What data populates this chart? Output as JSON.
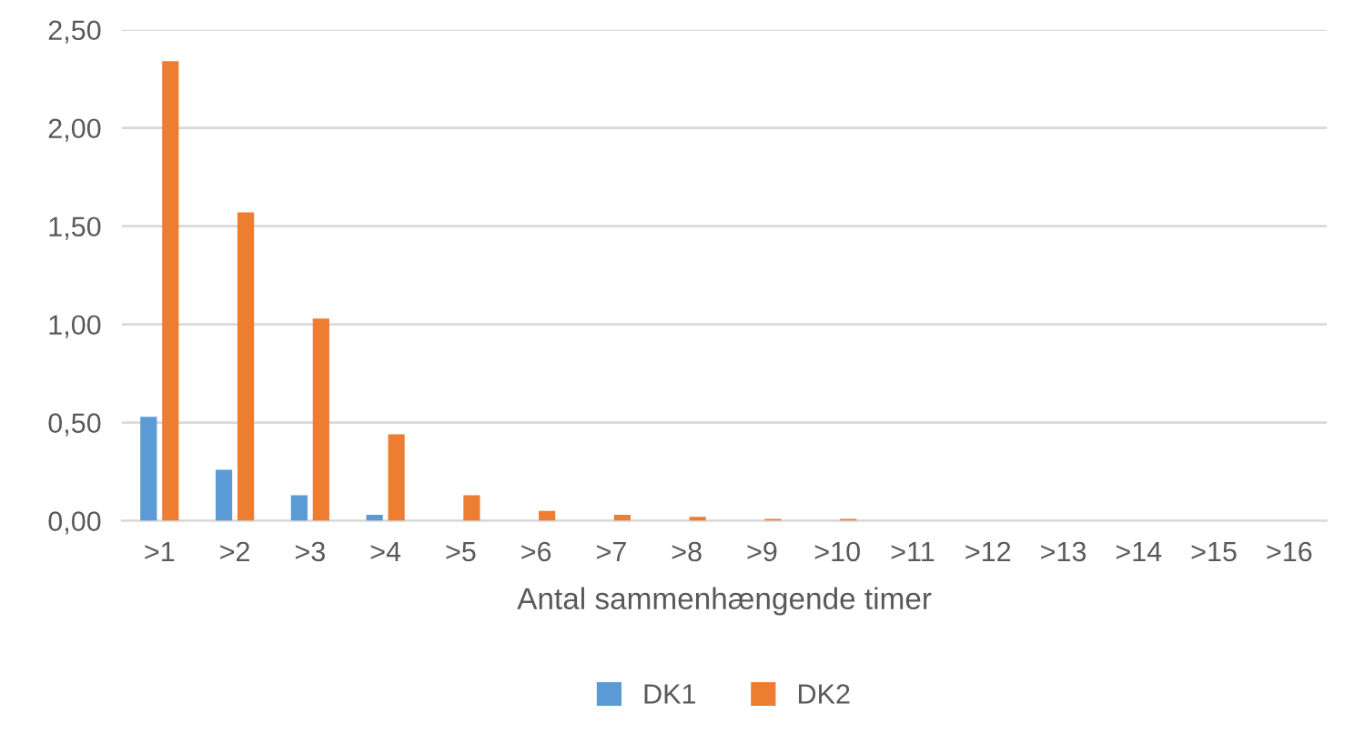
{
  "chart_data": {
    "type": "bar",
    "xlabel": "Antal sammenhængende timer",
    "categories": [
      ">1",
      ">2",
      ">3",
      ">4",
      ">5",
      ">6",
      ">7",
      ">8",
      ">9",
      ">10",
      ">11",
      ">12",
      ">13",
      ">14",
      ">15",
      ">16"
    ],
    "series": [
      {
        "name": "DK1",
        "color": "#5b9bd5",
        "values": [
          0.53,
          0.26,
          0.13,
          0.03,
          0,
          0,
          0,
          0,
          0,
          0,
          0,
          0,
          0,
          0,
          0,
          0
        ]
      },
      {
        "name": "DK2",
        "color": "#ed7d31",
        "values": [
          2.34,
          1.57,
          1.03,
          0.44,
          0.13,
          0.05,
          0.03,
          0.02,
          0.01,
          0.01,
          0,
          0,
          0,
          0,
          0,
          0
        ]
      }
    ],
    "ylim": [
      0,
      2.5
    ],
    "yticks": [
      {
        "value": 0,
        "label": "0,00"
      },
      {
        "value": 0.5,
        "label": "0,50"
      },
      {
        "value": 1.0,
        "label": "1,00"
      },
      {
        "value": 1.5,
        "label": "1,50"
      },
      {
        "value": 2.0,
        "label": "2,00"
      },
      {
        "value": 2.5,
        "label": "2,50"
      }
    ],
    "grid": "y",
    "legend": "bottom"
  }
}
